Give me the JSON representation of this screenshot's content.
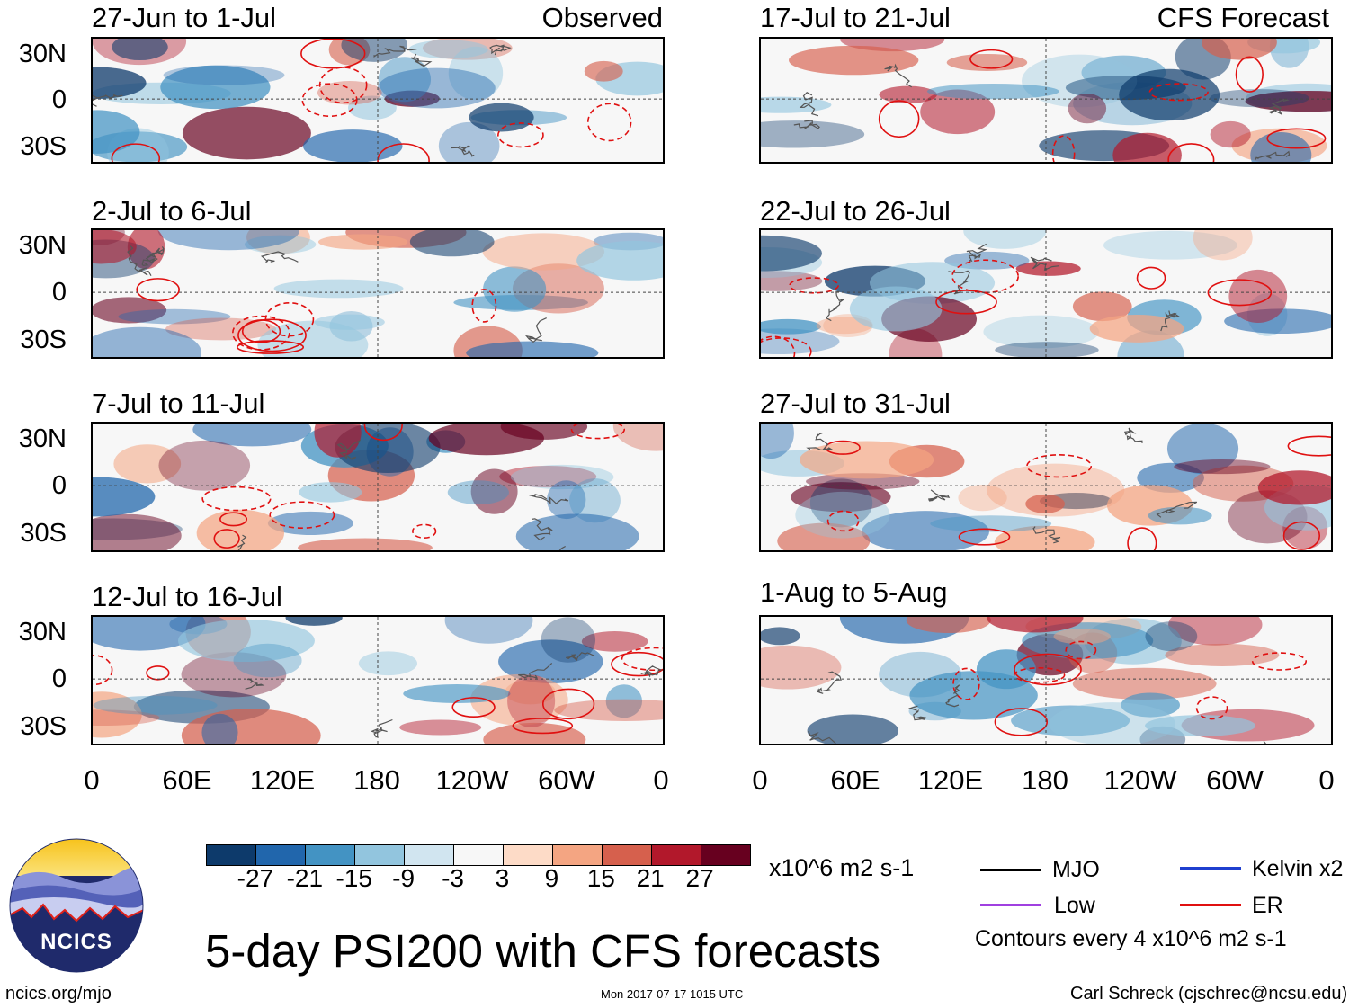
{
  "panels_left": [
    {
      "title": "27-Jun to 1-Jul",
      "tag": "Observed"
    },
    {
      "title": "2-Jul to 6-Jul",
      "tag": ""
    },
    {
      "title": "7-Jul to 11-Jul",
      "tag": ""
    },
    {
      "title": "12-Jul to 16-Jul",
      "tag": ""
    }
  ],
  "panels_right": [
    {
      "title": "17-Jul to 21-Jul",
      "tag": "CFS Forecast"
    },
    {
      "title": "22-Jul to 26-Jul",
      "tag": ""
    },
    {
      "title": "27-Jul to 31-Jul",
      "tag": ""
    },
    {
      "title": "1-Aug to 5-Aug",
      "tag": ""
    }
  ],
  "lat_labels": [
    "30N",
    "0",
    "30S"
  ],
  "lon_labels": [
    "0",
    "60E",
    "120E",
    "180",
    "120W",
    "60W",
    "0"
  ],
  "colorbar": {
    "ticks": [
      "-27",
      "-21",
      "-15",
      "-9",
      "-3",
      "3",
      "9",
      "15",
      "21",
      "27"
    ],
    "colors": [
      "#0d3a6b",
      "#2166ac",
      "#4393c3",
      "#92c5de",
      "#d1e5f0",
      "#f7f7f7",
      "#fddbc7",
      "#f4a582",
      "#d6604d",
      "#b2182b",
      "#67001f"
    ],
    "units": "x10^6 m2 s-1"
  },
  "legend": {
    "items": [
      {
        "label": "MJO",
        "color": "#000000"
      },
      {
        "label": "Kelvin x2",
        "color": "#1f3fcf"
      },
      {
        "label": "Low",
        "color": "#a040e0"
      },
      {
        "label": "ER",
        "color": "#e01010"
      }
    ],
    "note": "Contours every 4 x10^6 m2 s-1"
  },
  "logo_text": "NCICS",
  "main_title": "5-day PSI200 with CFS forecasts",
  "footer": {
    "url": "ncics.org/mjo",
    "timestamp": "Mon 2017-07-17 1015 UTC",
    "author": "Carl Schreck (cjschrec@ncsu.edu)"
  }
}
